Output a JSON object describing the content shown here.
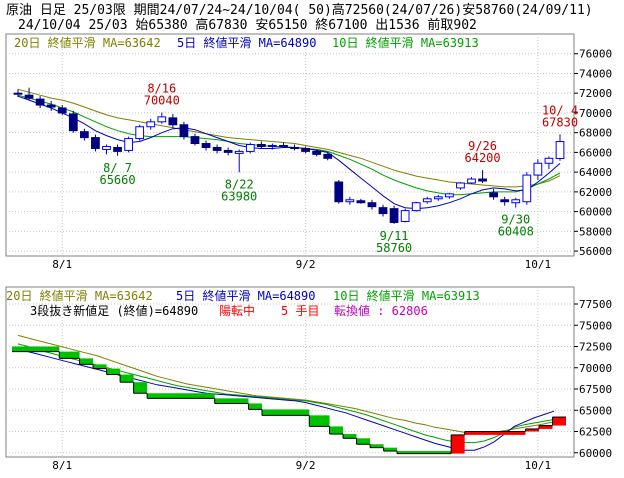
{
  "header": {
    "line1": "原油 日足 25/03限 期間24/07/24~24/10/04( 50)高72560(24/07/26)安58760(24/09/11)",
    "line2": "24/10/04 25/03 始65380 高67830 安65150 終67100 出1536 前取902"
  },
  "colors": {
    "background": "#ffffff",
    "plot_border": "#808080",
    "grid": "#c8c8c8",
    "ma20": "#808000",
    "ma5": "#0000c0",
    "ma10": "#00a000",
    "bull_candle": "#0000ff",
    "bear_candle": "#000080",
    "high_annotation": "#c00000",
    "low_annotation": "#008000",
    "brick_down": "#00c000",
    "brick_up": "#ff0000",
    "brick_line": "#000000",
    "status_red": "#ff0000",
    "status_magenta": "#c000c0"
  },
  "chart_data": [
    {
      "type": "candlestick",
      "legend": {
        "ma20": "20日 終値平滑 MA=63642",
        "ma5": "5日 終値平滑 MA=64890",
        "ma10": "10日 終値平滑 MA=63913"
      },
      "ylim": [
        55500,
        78000
      ],
      "y_ticks": [
        "76000",
        "74000",
        "72000",
        "70000",
        "68000",
        "66000",
        "64000",
        "62000",
        "60000",
        "58000",
        "56000"
      ],
      "x_ticks": [
        "8/1",
        "9/2",
        "10/1"
      ],
      "candles": [
        {
          "o": 72000,
          "h": 72400,
          "l": 71600,
          "c": 71900
        },
        {
          "o": 71800,
          "h": 72560,
          "l": 71300,
          "c": 71500
        },
        {
          "o": 71400,
          "h": 71700,
          "l": 70500,
          "c": 70800
        },
        {
          "o": 70800,
          "h": 71200,
          "l": 70200,
          "c": 70600
        },
        {
          "o": 70500,
          "h": 70800,
          "l": 69800,
          "c": 70000
        },
        {
          "o": 69900,
          "h": 70200,
          "l": 68000,
          "c": 68200
        },
        {
          "o": 68100,
          "h": 68400,
          "l": 67200,
          "c": 67500
        },
        {
          "o": 67500,
          "h": 67800,
          "l": 66100,
          "c": 66400
        },
        {
          "o": 66300,
          "h": 66800,
          "l": 65800,
          "c": 66600
        },
        {
          "o": 66500,
          "h": 66800,
          "l": 65660,
          "c": 66100
        },
        {
          "o": 66200,
          "h": 67600,
          "l": 66000,
          "c": 67400
        },
        {
          "o": 67400,
          "h": 68800,
          "l": 67200,
          "c": 68600
        },
        {
          "o": 68600,
          "h": 69400,
          "l": 68300,
          "c": 69100
        },
        {
          "o": 69100,
          "h": 70040,
          "l": 68900,
          "c": 69600
        },
        {
          "o": 69500,
          "h": 69900,
          "l": 68500,
          "c": 68800
        },
        {
          "o": 68800,
          "h": 69100,
          "l": 67300,
          "c": 67600
        },
        {
          "o": 67600,
          "h": 67900,
          "l": 66700,
          "c": 66900
        },
        {
          "o": 66900,
          "h": 67200,
          "l": 66200,
          "c": 66500
        },
        {
          "o": 66500,
          "h": 66800,
          "l": 65900,
          "c": 66200
        },
        {
          "o": 66200,
          "h": 66500,
          "l": 65700,
          "c": 66000
        },
        {
          "o": 65900,
          "h": 66300,
          "l": 63980,
          "c": 66100
        },
        {
          "o": 66100,
          "h": 67000,
          "l": 65900,
          "c": 66800
        },
        {
          "o": 66800,
          "h": 67100,
          "l": 66400,
          "c": 66600
        },
        {
          "o": 66600,
          "h": 66900,
          "l": 66300,
          "c": 66700
        },
        {
          "o": 66700,
          "h": 67000,
          "l": 66500,
          "c": 66600
        },
        {
          "o": 66500,
          "h": 66800,
          "l": 66200,
          "c": 66400
        },
        {
          "o": 66400,
          "h": 66600,
          "l": 65900,
          "c": 66100
        },
        {
          "o": 66100,
          "h": 66300,
          "l": 65600,
          "c": 65800
        },
        {
          "o": 65800,
          "h": 66000,
          "l": 65200,
          "c": 65400
        },
        {
          "o": 63000,
          "h": 63200,
          "l": 60800,
          "c": 61000
        },
        {
          "o": 61000,
          "h": 61500,
          "l": 60700,
          "c": 61200
        },
        {
          "o": 61100,
          "h": 61300,
          "l": 60800,
          "c": 60900
        },
        {
          "o": 60900,
          "h": 61200,
          "l": 60200,
          "c": 60500
        },
        {
          "o": 60400,
          "h": 60700,
          "l": 59500,
          "c": 59800
        },
        {
          "o": 60300,
          "h": 60600,
          "l": 58760,
          "c": 58900
        },
        {
          "o": 59000,
          "h": 60300,
          "l": 58900,
          "c": 60100
        },
        {
          "o": 60100,
          "h": 61000,
          "l": 60000,
          "c": 60900
        },
        {
          "o": 61000,
          "h": 61500,
          "l": 60800,
          "c": 61300
        },
        {
          "o": 61300,
          "h": 61700,
          "l": 61100,
          "c": 61500
        },
        {
          "o": 61500,
          "h": 61900,
          "l": 61300,
          "c": 61800
        },
        {
          "o": 62400,
          "h": 63000,
          "l": 62200,
          "c": 62900
        },
        {
          "o": 62900,
          "h": 63500,
          "l": 62800,
          "c": 63300
        },
        {
          "o": 63300,
          "h": 64200,
          "l": 62900,
          "c": 63100
        },
        {
          "o": 61900,
          "h": 62300,
          "l": 61200,
          "c": 61500
        },
        {
          "o": 61200,
          "h": 61500,
          "l": 60600,
          "c": 61000
        },
        {
          "o": 60900,
          "h": 61400,
          "l": 60408,
          "c": 61200
        },
        {
          "o": 61000,
          "h": 64000,
          "l": 60700,
          "c": 63700
        },
        {
          "o": 63700,
          "h": 65300,
          "l": 63200,
          "c": 64900
        },
        {
          "o": 64900,
          "h": 65600,
          "l": 64300,
          "c": 65400
        },
        {
          "o": 65380,
          "h": 67830,
          "l": 65150,
          "c": 67100
        }
      ],
      "ma20": [
        72400,
        72100,
        71800,
        71500,
        71300,
        71000,
        70600,
        70200,
        69800,
        69500,
        69300,
        69100,
        68900,
        68700,
        68500,
        68300,
        68100,
        67900,
        67700,
        67500,
        67400,
        67300,
        67200,
        67100,
        67000,
        66900,
        66700,
        66500,
        66300,
        66000,
        65700,
        65400,
        65000,
        64600,
        64200,
        63900,
        63600,
        63400,
        63200,
        63000,
        62900,
        62800,
        62700,
        62600,
        62500,
        62500,
        62600,
        62800,
        63100,
        63642
      ],
      "ma10": [
        71800,
        71500,
        71200,
        70900,
        70500,
        70100,
        69600,
        69100,
        68600,
        68200,
        67900,
        67700,
        67600,
        67600,
        67600,
        67600,
        67500,
        67400,
        67300,
        67100,
        66900,
        66800,
        66700,
        66600,
        66600,
        66500,
        66400,
        66300,
        66100,
        65700,
        65300,
        64800,
        64300,
        63700,
        63200,
        62800,
        62400,
        62100,
        61900,
        61700,
        61700,
        61800,
        61900,
        62000,
        62000,
        62000,
        62300,
        62800,
        63300,
        63913
      ],
      "ma5": [
        71700,
        71300,
        70900,
        70500,
        70000,
        69500,
        68900,
        68200,
        67700,
        67300,
        67000,
        67100,
        67500,
        68000,
        68400,
        68500,
        68300,
        67900,
        67500,
        67100,
        66700,
        66500,
        66400,
        66400,
        66500,
        66500,
        66400,
        66200,
        66000,
        65200,
        64300,
        63400,
        62500,
        61600,
        60800,
        60400,
        60300,
        60400,
        60600,
        60900,
        61300,
        61800,
        62200,
        62400,
        62300,
        62100,
        62200,
        63000,
        63900,
        64890
      ]
    },
    {
      "type": "renko",
      "legend": {
        "ma20": "20日 終値平滑 MA=63642",
        "ma5": "5日 終値平滑 MA=64890",
        "ma10": "10日 終値平滑 MA=63913"
      },
      "subtitle": "3段抜き新値足 (終値)=64890",
      "status": "陽転中",
      "count": "5 手目",
      "reversal": "転換値 : 62806",
      "ylim": [
        59500,
        79500
      ],
      "y_ticks": [
        "77500",
        "75000",
        "72500",
        "70000",
        "67500",
        "65000",
        "62500",
        "60000"
      ],
      "x_ticks": [
        "8/1",
        "9/2",
        "10/1"
      ],
      "bricks": [
        {
          "start": 0,
          "end": 6,
          "top": 72500,
          "bottom": 71900,
          "dir": "down"
        },
        {
          "start": 7,
          "end": 9,
          "top": 71900,
          "bottom": 71100,
          "dir": "down"
        },
        {
          "start": 10,
          "end": 11,
          "top": 71100,
          "bottom": 70400,
          "dir": "down"
        },
        {
          "start": 12,
          "end": 13,
          "top": 70400,
          "bottom": 69900,
          "dir": "down"
        },
        {
          "start": 14,
          "end": 15,
          "top": 69900,
          "bottom": 69200,
          "dir": "down"
        },
        {
          "start": 16,
          "end": 17,
          "top": 69200,
          "bottom": 68300,
          "dir": "down"
        },
        {
          "start": 18,
          "end": 19,
          "top": 68300,
          "bottom": 67000,
          "dir": "down"
        },
        {
          "start": 20,
          "end": 29,
          "top": 67000,
          "bottom": 66400,
          "dir": "down"
        },
        {
          "start": 30,
          "end": 34,
          "top": 66400,
          "bottom": 65800,
          "dir": "down"
        },
        {
          "start": 35,
          "end": 36,
          "top": 65800,
          "bottom": 65100,
          "dir": "down"
        },
        {
          "start": 37,
          "end": 43,
          "top": 65100,
          "bottom": 64400,
          "dir": "down"
        },
        {
          "start": 44,
          "end": 46,
          "top": 64400,
          "bottom": 63100,
          "dir": "down"
        },
        {
          "start": 47,
          "end": 48,
          "top": 63100,
          "bottom": 62200,
          "dir": "down"
        },
        {
          "start": 49,
          "end": 50,
          "top": 62200,
          "bottom": 61700,
          "dir": "down"
        },
        {
          "start": 51,
          "end": 52,
          "top": 61700,
          "bottom": 61000,
          "dir": "down"
        },
        {
          "start": 53,
          "end": 54,
          "top": 61000,
          "bottom": 60600,
          "dir": "down"
        },
        {
          "start": 55,
          "end": 56,
          "top": 60600,
          "bottom": 60200,
          "dir": "down"
        },
        {
          "start": 57,
          "end": 64,
          "top": 60200,
          "bottom": 59900,
          "dir": "down"
        },
        {
          "start": 65,
          "end": 66,
          "top": 62100,
          "bottom": 59900,
          "dir": "up"
        },
        {
          "start": 67,
          "end": 75,
          "top": 62500,
          "bottom": 62100,
          "dir": "up"
        },
        {
          "start": 76,
          "end": 77,
          "top": 62800,
          "bottom": 62500,
          "dir": "up"
        },
        {
          "start": 78,
          "end": 79,
          "top": 63200,
          "bottom": 62800,
          "dir": "up"
        },
        {
          "start": 80,
          "end": 81,
          "top": 64200,
          "bottom": 63200,
          "dir": "up"
        }
      ],
      "ma20": [
        73800,
        73500,
        73200,
        72900,
        72600,
        72300,
        72000,
        71700,
        71400,
        71000,
        70600,
        70200,
        69800,
        69400,
        69000,
        68700,
        68400,
        68100,
        67900,
        67700,
        67500,
        67300,
        67100,
        66900,
        66700,
        66600,
        66500,
        66400,
        66300,
        66200,
        66000,
        65800,
        65600,
        65400,
        65200,
        64900,
        64600,
        64300,
        64000,
        63800,
        63500,
        63300,
        63000,
        62800,
        62600,
        62400,
        62300,
        62300,
        62400,
        62600,
        62800,
        63000,
        63200,
        63400,
        63642
      ],
      "ma10": [
        72800,
        72500,
        72100,
        71800,
        71500,
        71200,
        70900,
        70600,
        70300,
        70000,
        69700,
        69400,
        69100,
        68800,
        68500,
        68200,
        67900,
        67700,
        67500,
        67300,
        67100,
        66900,
        66800,
        66700,
        66600,
        66500,
        66400,
        66300,
        66200,
        66100,
        65900,
        65700,
        65400,
        65100,
        64800,
        64500,
        64100,
        63700,
        63300,
        62900,
        62500,
        62100,
        61800,
        61500,
        61300,
        61200,
        61200,
        61400,
        61800,
        62400,
        63000,
        63300,
        63500,
        63700,
        63913
      ],
      "ma5": [
        72200,
        71900,
        71600,
        71300,
        71000,
        70700,
        70400,
        70100,
        69800,
        69500,
        69200,
        68900,
        68600,
        68300,
        68000,
        67800,
        67600,
        67400,
        67200,
        67000,
        66900,
        66800,
        66700,
        66600,
        66500,
        66400,
        66300,
        66200,
        66100,
        65900,
        65600,
        65300,
        65000,
        64700,
        64300,
        63900,
        63500,
        63100,
        62700,
        62300,
        61900,
        61500,
        61100,
        60800,
        60500,
        60300,
        60300,
        60700,
        61300,
        62200,
        63100,
        63600,
        64100,
        64500,
        64890
      ]
    }
  ],
  "annotations": [
    {
      "date": "8/16",
      "price": "70040",
      "kind": "high",
      "candle": 13
    },
    {
      "date": "8/ 7",
      "price": "65660",
      "kind": "low",
      "candle": 9
    },
    {
      "date": "8/22",
      "price": "63980",
      "kind": "low",
      "candle": 20
    },
    {
      "date": "9/11",
      "price": "58760",
      "kind": "low",
      "candle": 34
    },
    {
      "date": "9/26",
      "price": "64200",
      "kind": "high",
      "candle": 42
    },
    {
      "date": "9/30",
      "price": "60408",
      "kind": "low",
      "candle": 45
    },
    {
      "date": "10/ 4",
      "price": "67830",
      "kind": "high",
      "candle": 49
    }
  ]
}
